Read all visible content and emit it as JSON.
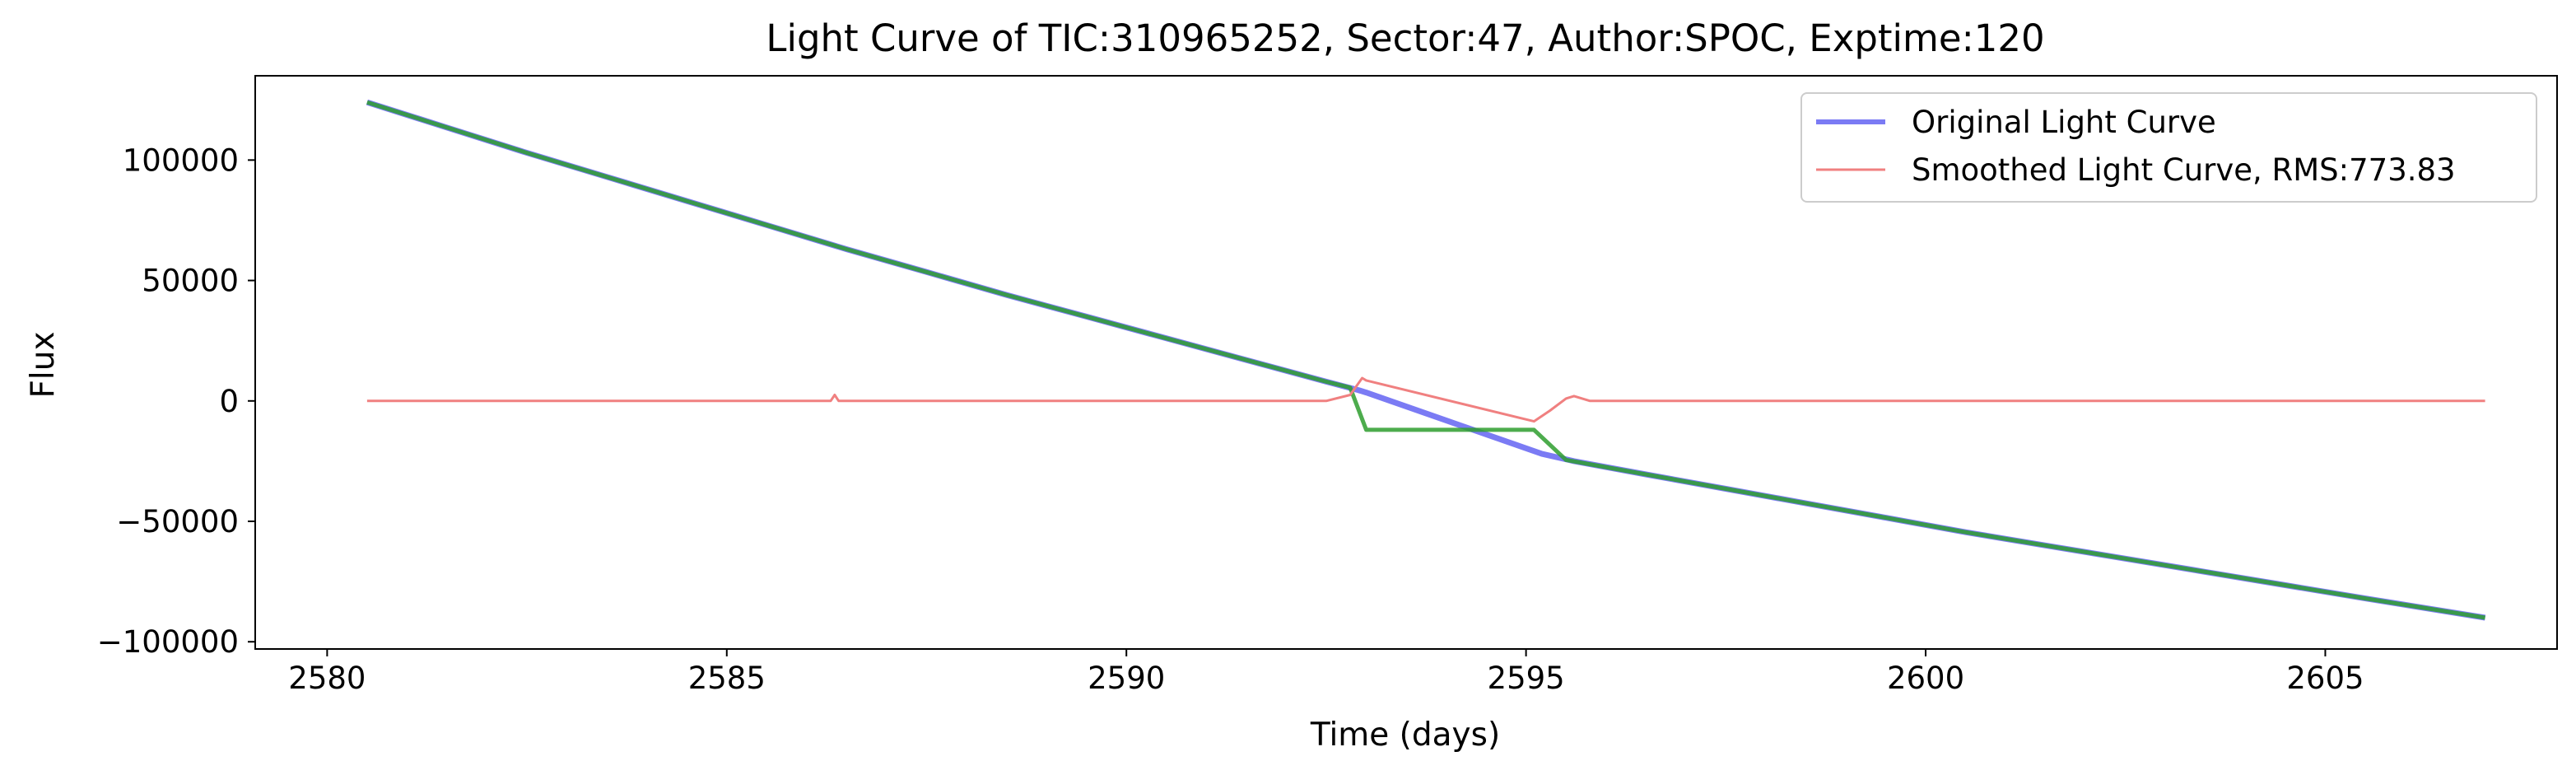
{
  "chart_data": {
    "type": "line",
    "title": "Light Curve of TIC:310965252, Sector:47, Author:SPOC, Exptime:120",
    "xlabel": "Time (days)",
    "ylabel": "Flux",
    "xlim": [
      2579.1,
      2607.9
    ],
    "ylim": [
      -103000,
      135000
    ],
    "xticks": [
      2580,
      2585,
      2590,
      2595,
      2600,
      2605
    ],
    "xtick_labels": [
      "2580",
      "2585",
      "2590",
      "2595",
      "2600",
      "2605"
    ],
    "yticks": [
      100000,
      50000,
      0,
      -50000,
      -100000
    ],
    "ytick_labels": [
      "100000",
      "50000",
      "0",
      "−50000",
      "−100000"
    ],
    "grid": false,
    "legend_position": "top-right",
    "series": [
      {
        "name": "Original Light Curve",
        "color": "#7b7bf4",
        "points": [
          [
            2580.5,
            124000
          ],
          [
            2581.5,
            113500
          ],
          [
            2582.5,
            103000
          ],
          [
            2583.5,
            93000
          ],
          [
            2584.5,
            83000
          ],
          [
            2585.5,
            73000
          ],
          [
            2586.5,
            63000
          ],
          [
            2587.5,
            53500
          ],
          [
            2588.5,
            44000
          ],
          [
            2589.5,
            35000
          ],
          [
            2590.5,
            26000
          ],
          [
            2591.5,
            17000
          ],
          [
            2592.0,
            12500
          ],
          [
            2592.5,
            8000
          ],
          [
            2592.9,
            4500
          ],
          [
            2593.0,
            3500
          ],
          [
            2595.2,
            -22000
          ],
          [
            2595.6,
            -25000
          ],
          [
            2596.5,
            -30500
          ],
          [
            2597.5,
            -36500
          ],
          [
            2598.5,
            -42500
          ],
          [
            2599.5,
            -48500
          ],
          [
            2600.5,
            -54500
          ],
          [
            2601.5,
            -60000
          ],
          [
            2602.5,
            -65500
          ],
          [
            2603.5,
            -71000
          ],
          [
            2604.5,
            -76500
          ],
          [
            2605.5,
            -82000
          ],
          [
            2607.0,
            -90000
          ]
        ]
      },
      {
        "color": "#2e9e2e",
        "points": [
          [
            2580.5,
            124000
          ],
          [
            2581.5,
            113500
          ],
          [
            2582.5,
            103000
          ],
          [
            2583.5,
            93000
          ],
          [
            2584.5,
            83000
          ],
          [
            2585.5,
            73000
          ],
          [
            2586.5,
            63000
          ],
          [
            2587.5,
            53500
          ],
          [
            2588.5,
            44000
          ],
          [
            2589.5,
            35000
          ],
          [
            2590.5,
            26000
          ],
          [
            2591.5,
            17000
          ],
          [
            2592.0,
            12500
          ],
          [
            2592.5,
            8000
          ],
          [
            2592.8,
            5500
          ],
          [
            2593.0,
            -12000
          ],
          [
            2595.1,
            -12000
          ],
          [
            2595.5,
            -24500
          ],
          [
            2596.5,
            -30500
          ],
          [
            2597.5,
            -36500
          ],
          [
            2598.5,
            -42500
          ],
          [
            2599.5,
            -48500
          ],
          [
            2600.5,
            -54500
          ],
          [
            2601.5,
            -60000
          ],
          [
            2602.5,
            -65500
          ],
          [
            2603.5,
            -71000
          ],
          [
            2604.5,
            -76500
          ],
          [
            2605.5,
            -82000
          ],
          [
            2607.0,
            -90000
          ]
        ]
      },
      {
        "name": "Smoothed Light Curve, RMS:773.83",
        "color": "#f08080",
        "points": [
          [
            2580.5,
            0
          ],
          [
            2586.3,
            0
          ],
          [
            2586.35,
            2500
          ],
          [
            2586.4,
            0
          ],
          [
            2592.0,
            0
          ],
          [
            2592.5,
            0
          ],
          [
            2592.8,
            2500
          ],
          [
            2592.95,
            9500
          ],
          [
            2593.0,
            8500
          ],
          [
            2595.1,
            -8500
          ],
          [
            2595.3,
            -4000
          ],
          [
            2595.5,
            1000
          ],
          [
            2595.6,
            2000
          ],
          [
            2595.8,
            0
          ],
          [
            2607.0,
            0
          ]
        ]
      }
    ]
  }
}
